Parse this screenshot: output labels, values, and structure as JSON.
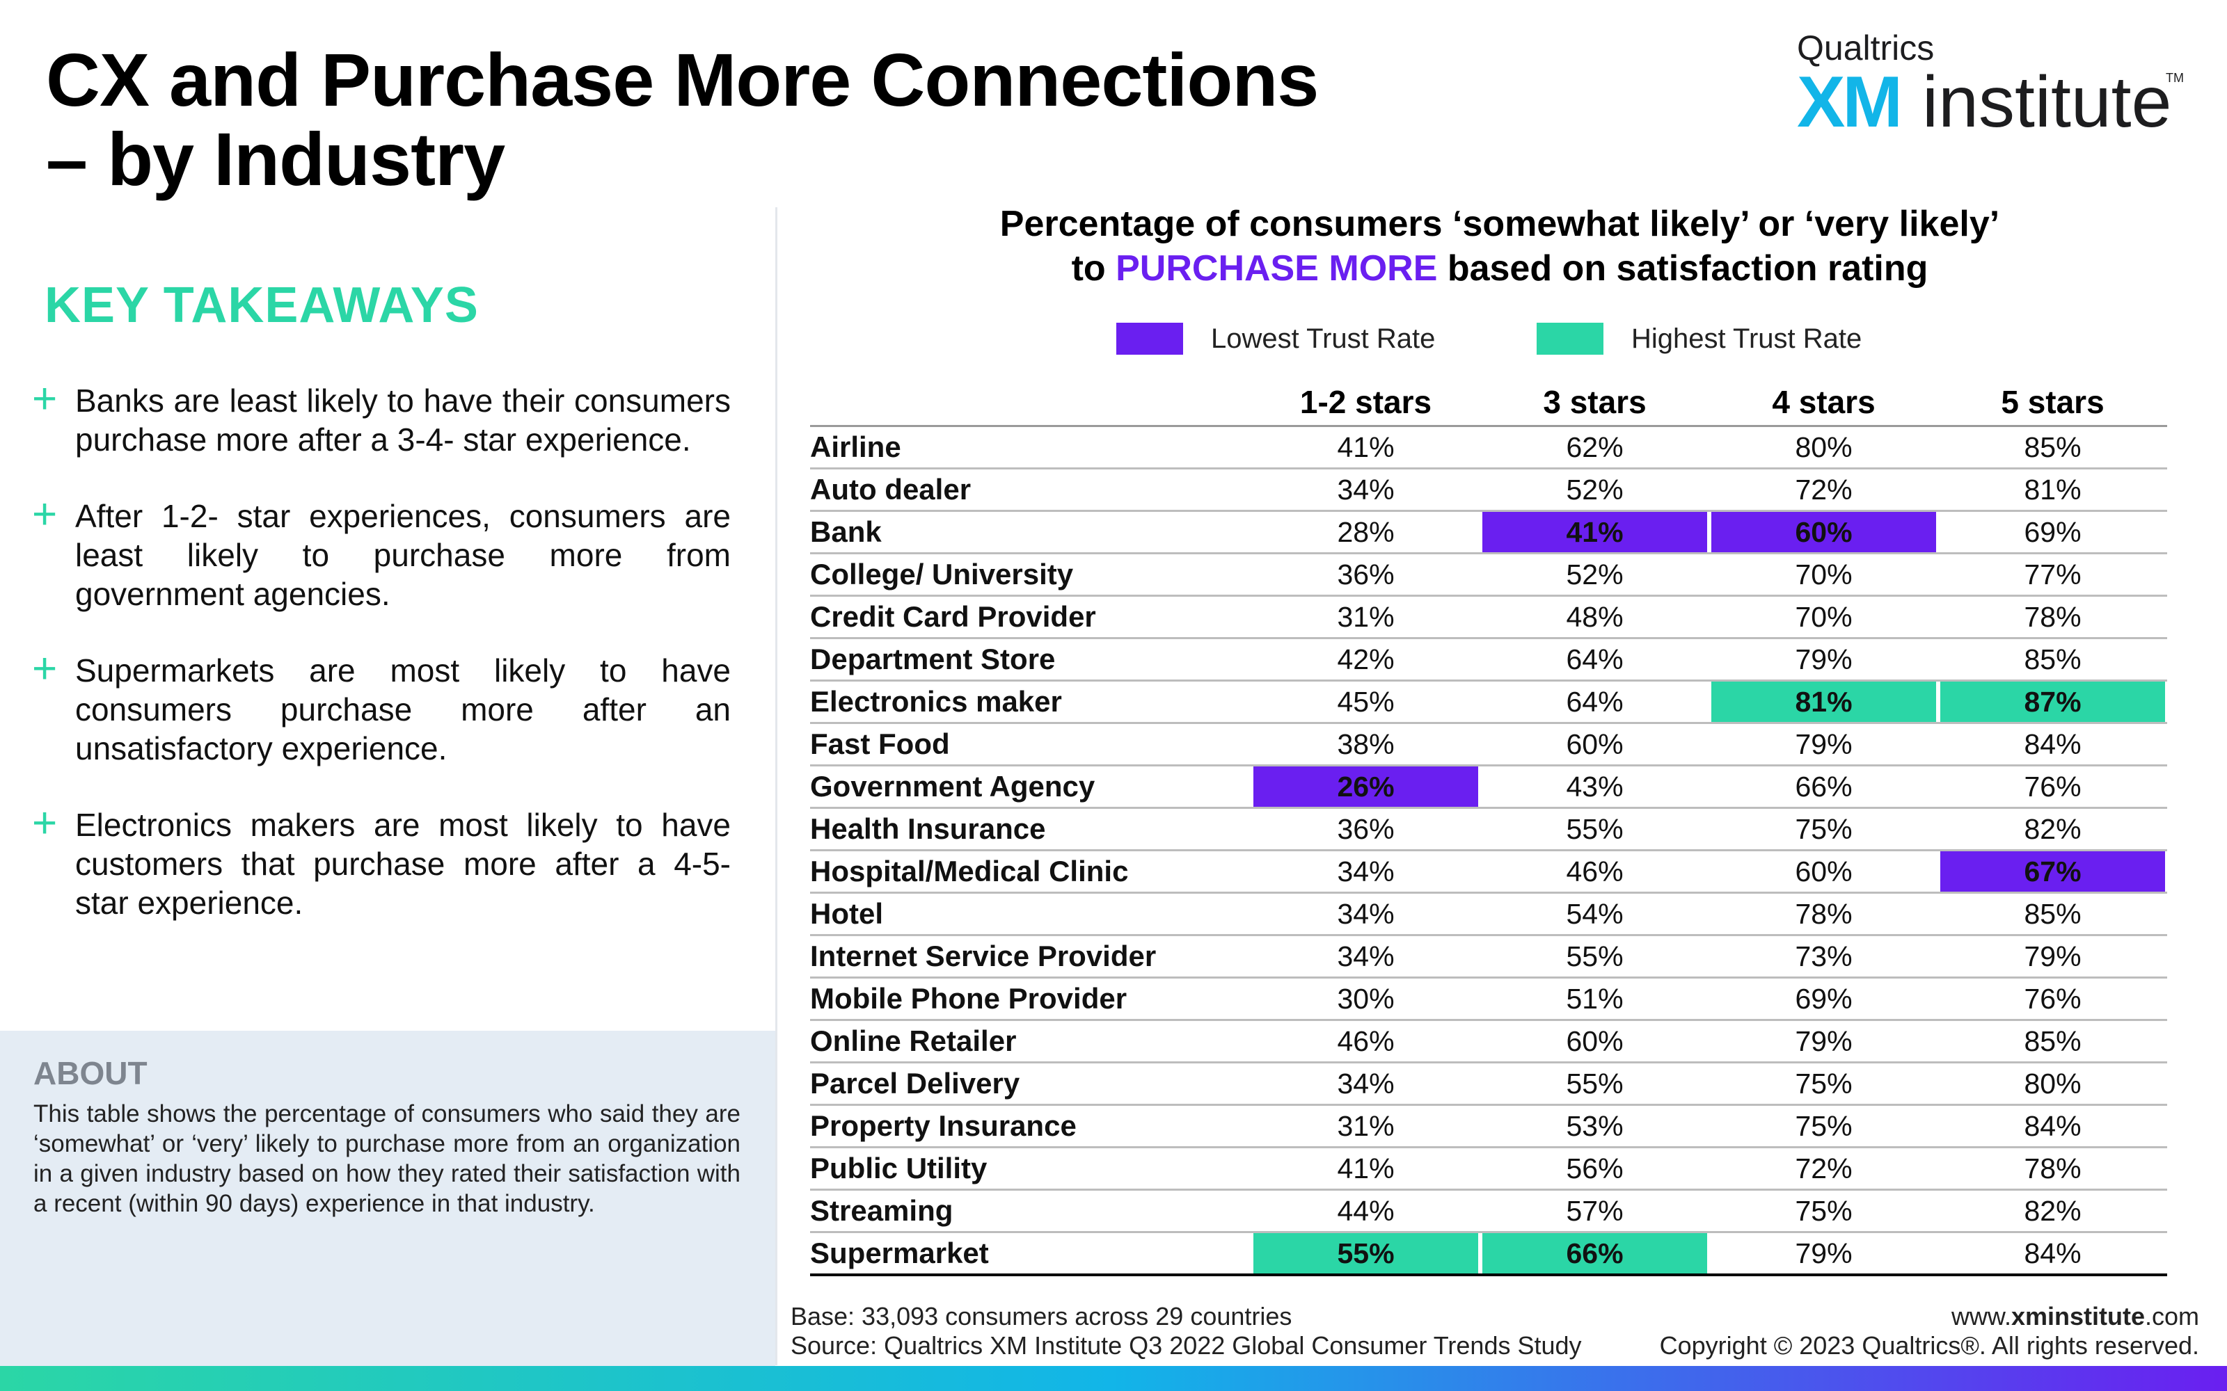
{
  "title": {
    "line1": "CX and Purchase More Connections",
    "line2": "– by Industry"
  },
  "logo": {
    "small": "Qualtrics",
    "xm": "XM",
    "institute": "institute",
    "tm": "TM"
  },
  "key_takeaways": {
    "heading": "KEY TAKEAWAYS",
    "items": [
      "Banks are least likely to have their consumers purchase more after a 3-4- star experience.",
      "After 1-2- star experiences, consumers are least likely to purchase more from government agencies.",
      "Supermarkets are most likely to have consumers purchase more after an unsatisfactory experience.",
      "Electronics makers are most likely to have customers that purchase more after a 4-5- star experience."
    ]
  },
  "about": {
    "heading": "ABOUT",
    "text": "This table shows the percentage of consumers who said they are ‘somewhat’ or ‘very’ likely to purchase more from an organization in a given industry based on how they rated their satisfaction with a recent (within 90 days) experience in that industry."
  },
  "table": {
    "title_line1": "Percentage of consumers ‘somewhat likely’ or ‘very likely’",
    "title_line2_pre": "to ",
    "title_line2_accent": "PURCHASE MORE",
    "title_line2_post": " based on satisfaction rating",
    "legend": {
      "low": "Lowest Trust Rate",
      "high": "Highest Trust Rate"
    },
    "colors": {
      "low": "#6a1ff0",
      "high": "#2bd6a6"
    },
    "headers": [
      "",
      "1-2 stars",
      "3 stars",
      "4 stars",
      "5 stars"
    ],
    "rows": [
      {
        "industry": "Airline",
        "values": [
          "41%",
          "62%",
          "80%",
          "85%"
        ],
        "highlights": [
          "",
          "",
          "",
          ""
        ]
      },
      {
        "industry": "Auto dealer",
        "values": [
          "34%",
          "52%",
          "72%",
          "81%"
        ],
        "highlights": [
          "",
          "",
          "",
          ""
        ]
      },
      {
        "industry": "Bank",
        "values": [
          "28%",
          "41%",
          "60%",
          "69%"
        ],
        "highlights": [
          "",
          "low",
          "low",
          ""
        ]
      },
      {
        "industry": "College/ University",
        "values": [
          "36%",
          "52%",
          "70%",
          "77%"
        ],
        "highlights": [
          "",
          "",
          "",
          ""
        ]
      },
      {
        "industry": "Credit Card Provider",
        "values": [
          "31%",
          "48%",
          "70%",
          "78%"
        ],
        "highlights": [
          "",
          "",
          "",
          ""
        ]
      },
      {
        "industry": "Department Store",
        "values": [
          "42%",
          "64%",
          "79%",
          "85%"
        ],
        "highlights": [
          "",
          "",
          "",
          ""
        ]
      },
      {
        "industry": "Electronics maker",
        "values": [
          "45%",
          "64%",
          "81%",
          "87%"
        ],
        "highlights": [
          "",
          "",
          "high",
          "high"
        ]
      },
      {
        "industry": "Fast Food",
        "values": [
          "38%",
          "60%",
          "79%",
          "84%"
        ],
        "highlights": [
          "",
          "",
          "",
          ""
        ]
      },
      {
        "industry": "Government Agency",
        "values": [
          "26%",
          "43%",
          "66%",
          "76%"
        ],
        "highlights": [
          "low",
          "",
          "",
          ""
        ]
      },
      {
        "industry": "Health Insurance",
        "values": [
          "36%",
          "55%",
          "75%",
          "82%"
        ],
        "highlights": [
          "",
          "",
          "",
          ""
        ]
      },
      {
        "industry": "Hospital/Medical Clinic",
        "values": [
          "34%",
          "46%",
          "60%",
          "67%"
        ],
        "highlights": [
          "",
          "",
          "",
          "low"
        ]
      },
      {
        "industry": "Hotel",
        "values": [
          "34%",
          "54%",
          "78%",
          "85%"
        ],
        "highlights": [
          "",
          "",
          "",
          ""
        ]
      },
      {
        "industry": "Internet Service Provider",
        "values": [
          "34%",
          "55%",
          "73%",
          "79%"
        ],
        "highlights": [
          "",
          "",
          "",
          ""
        ]
      },
      {
        "industry": "Mobile Phone Provider",
        "values": [
          "30%",
          "51%",
          "69%",
          "76%"
        ],
        "highlights": [
          "",
          "",
          "",
          ""
        ]
      },
      {
        "industry": "Online Retailer",
        "values": [
          "46%",
          "60%",
          "79%",
          "85%"
        ],
        "highlights": [
          "",
          "",
          "",
          ""
        ]
      },
      {
        "industry": "Parcel Delivery",
        "values": [
          "34%",
          "55%",
          "75%",
          "80%"
        ],
        "highlights": [
          "",
          "",
          "",
          ""
        ]
      },
      {
        "industry": "Property Insurance",
        "values": [
          "31%",
          "53%",
          "75%",
          "84%"
        ],
        "highlights": [
          "",
          "",
          "",
          ""
        ]
      },
      {
        "industry": "Public Utility",
        "values": [
          "41%",
          "56%",
          "72%",
          "78%"
        ],
        "highlights": [
          "",
          "",
          "",
          ""
        ]
      },
      {
        "industry": "Streaming",
        "values": [
          "44%",
          "57%",
          "75%",
          "82%"
        ],
        "highlights": [
          "",
          "",
          "",
          ""
        ]
      },
      {
        "industry": "Supermarket",
        "values": [
          "55%",
          "66%",
          "79%",
          "84%"
        ],
        "highlights": [
          "high",
          "high",
          "",
          ""
        ]
      }
    ]
  },
  "footer": {
    "base": "Base: 33,093 consumers across 29 countries",
    "source": "Source: Qualtrics XM Institute Q3 2022 Global Consumer Trends Study",
    "url_pre": "www.",
    "url_bold": "xminstitute",
    "url_post": ".com",
    "copyright": "Copyright © 2023 Qualtrics®. All rights reserved."
  }
}
